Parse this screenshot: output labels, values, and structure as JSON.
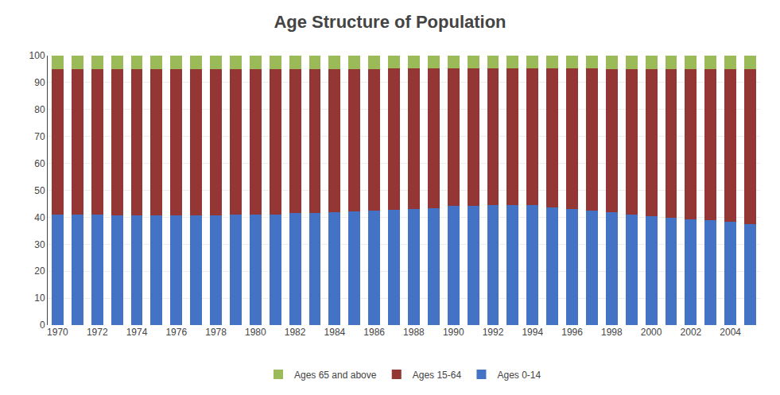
{
  "chart_data": {
    "type": "bar",
    "title": "Age Structure of Population",
    "stacked": true,
    "categories": [
      "1970",
      null,
      "1972",
      null,
      "1974",
      null,
      "1976",
      null,
      "1978",
      null,
      "1980",
      null,
      "1982",
      null,
      "1984",
      null,
      "1986",
      null,
      "1988",
      null,
      "1990",
      null,
      "1992",
      null,
      "1994",
      null,
      "1996",
      null,
      "1998",
      null,
      "2000",
      null,
      "2002",
      null,
      "2004",
      null
    ],
    "series": [
      {
        "name": "Ages 0-14",
        "color": "#4472C4",
        "values": [
          41.1,
          41.0,
          40.9,
          40.8,
          40.7,
          40.7,
          40.7,
          40.7,
          40.8,
          40.9,
          41.0,
          41.1,
          41.5,
          41.7,
          42.0,
          42.2,
          42.5,
          42.8,
          43.1,
          43.5,
          44.2,
          44.3,
          44.4,
          44.4,
          44.4,
          43.7,
          43.2,
          42.5,
          41.8,
          41.0,
          40.3,
          39.7,
          39.3,
          38.8,
          38.3,
          37.6
        ]
      },
      {
        "name": "Ages 15-64",
        "color": "#943634",
        "values": [
          54.0,
          54.1,
          54.2,
          54.3,
          54.3,
          54.3,
          54.3,
          54.4,
          54.3,
          54.2,
          54.1,
          54.0,
          53.6,
          53.4,
          53.1,
          52.9,
          52.6,
          52.4,
          52.2,
          51.7,
          51.0,
          50.9,
          50.8,
          50.8,
          50.8,
          51.5,
          52.0,
          52.7,
          53.3,
          54.1,
          54.8,
          55.3,
          55.7,
          56.2,
          56.7,
          57.5
        ]
      },
      {
        "name": "Ages 65 and above",
        "color": "#9BBB59",
        "values": [
          4.9,
          4.9,
          4.9,
          4.9,
          5.0,
          5.0,
          5.0,
          4.9,
          4.9,
          4.9,
          4.9,
          4.9,
          4.9,
          4.9,
          4.9,
          4.9,
          4.9,
          4.8,
          4.7,
          4.8,
          4.8,
          4.8,
          4.8,
          4.8,
          4.8,
          4.8,
          4.8,
          4.8,
          4.9,
          4.9,
          4.9,
          5.0,
          5.0,
          5.0,
          5.0,
          4.9
        ]
      }
    ],
    "ylim": [
      0,
      100
    ],
    "yticks": [
      0,
      10,
      20,
      30,
      40,
      50,
      60,
      70,
      80,
      90,
      100
    ],
    "grid": true,
    "legend": "bottom"
  }
}
